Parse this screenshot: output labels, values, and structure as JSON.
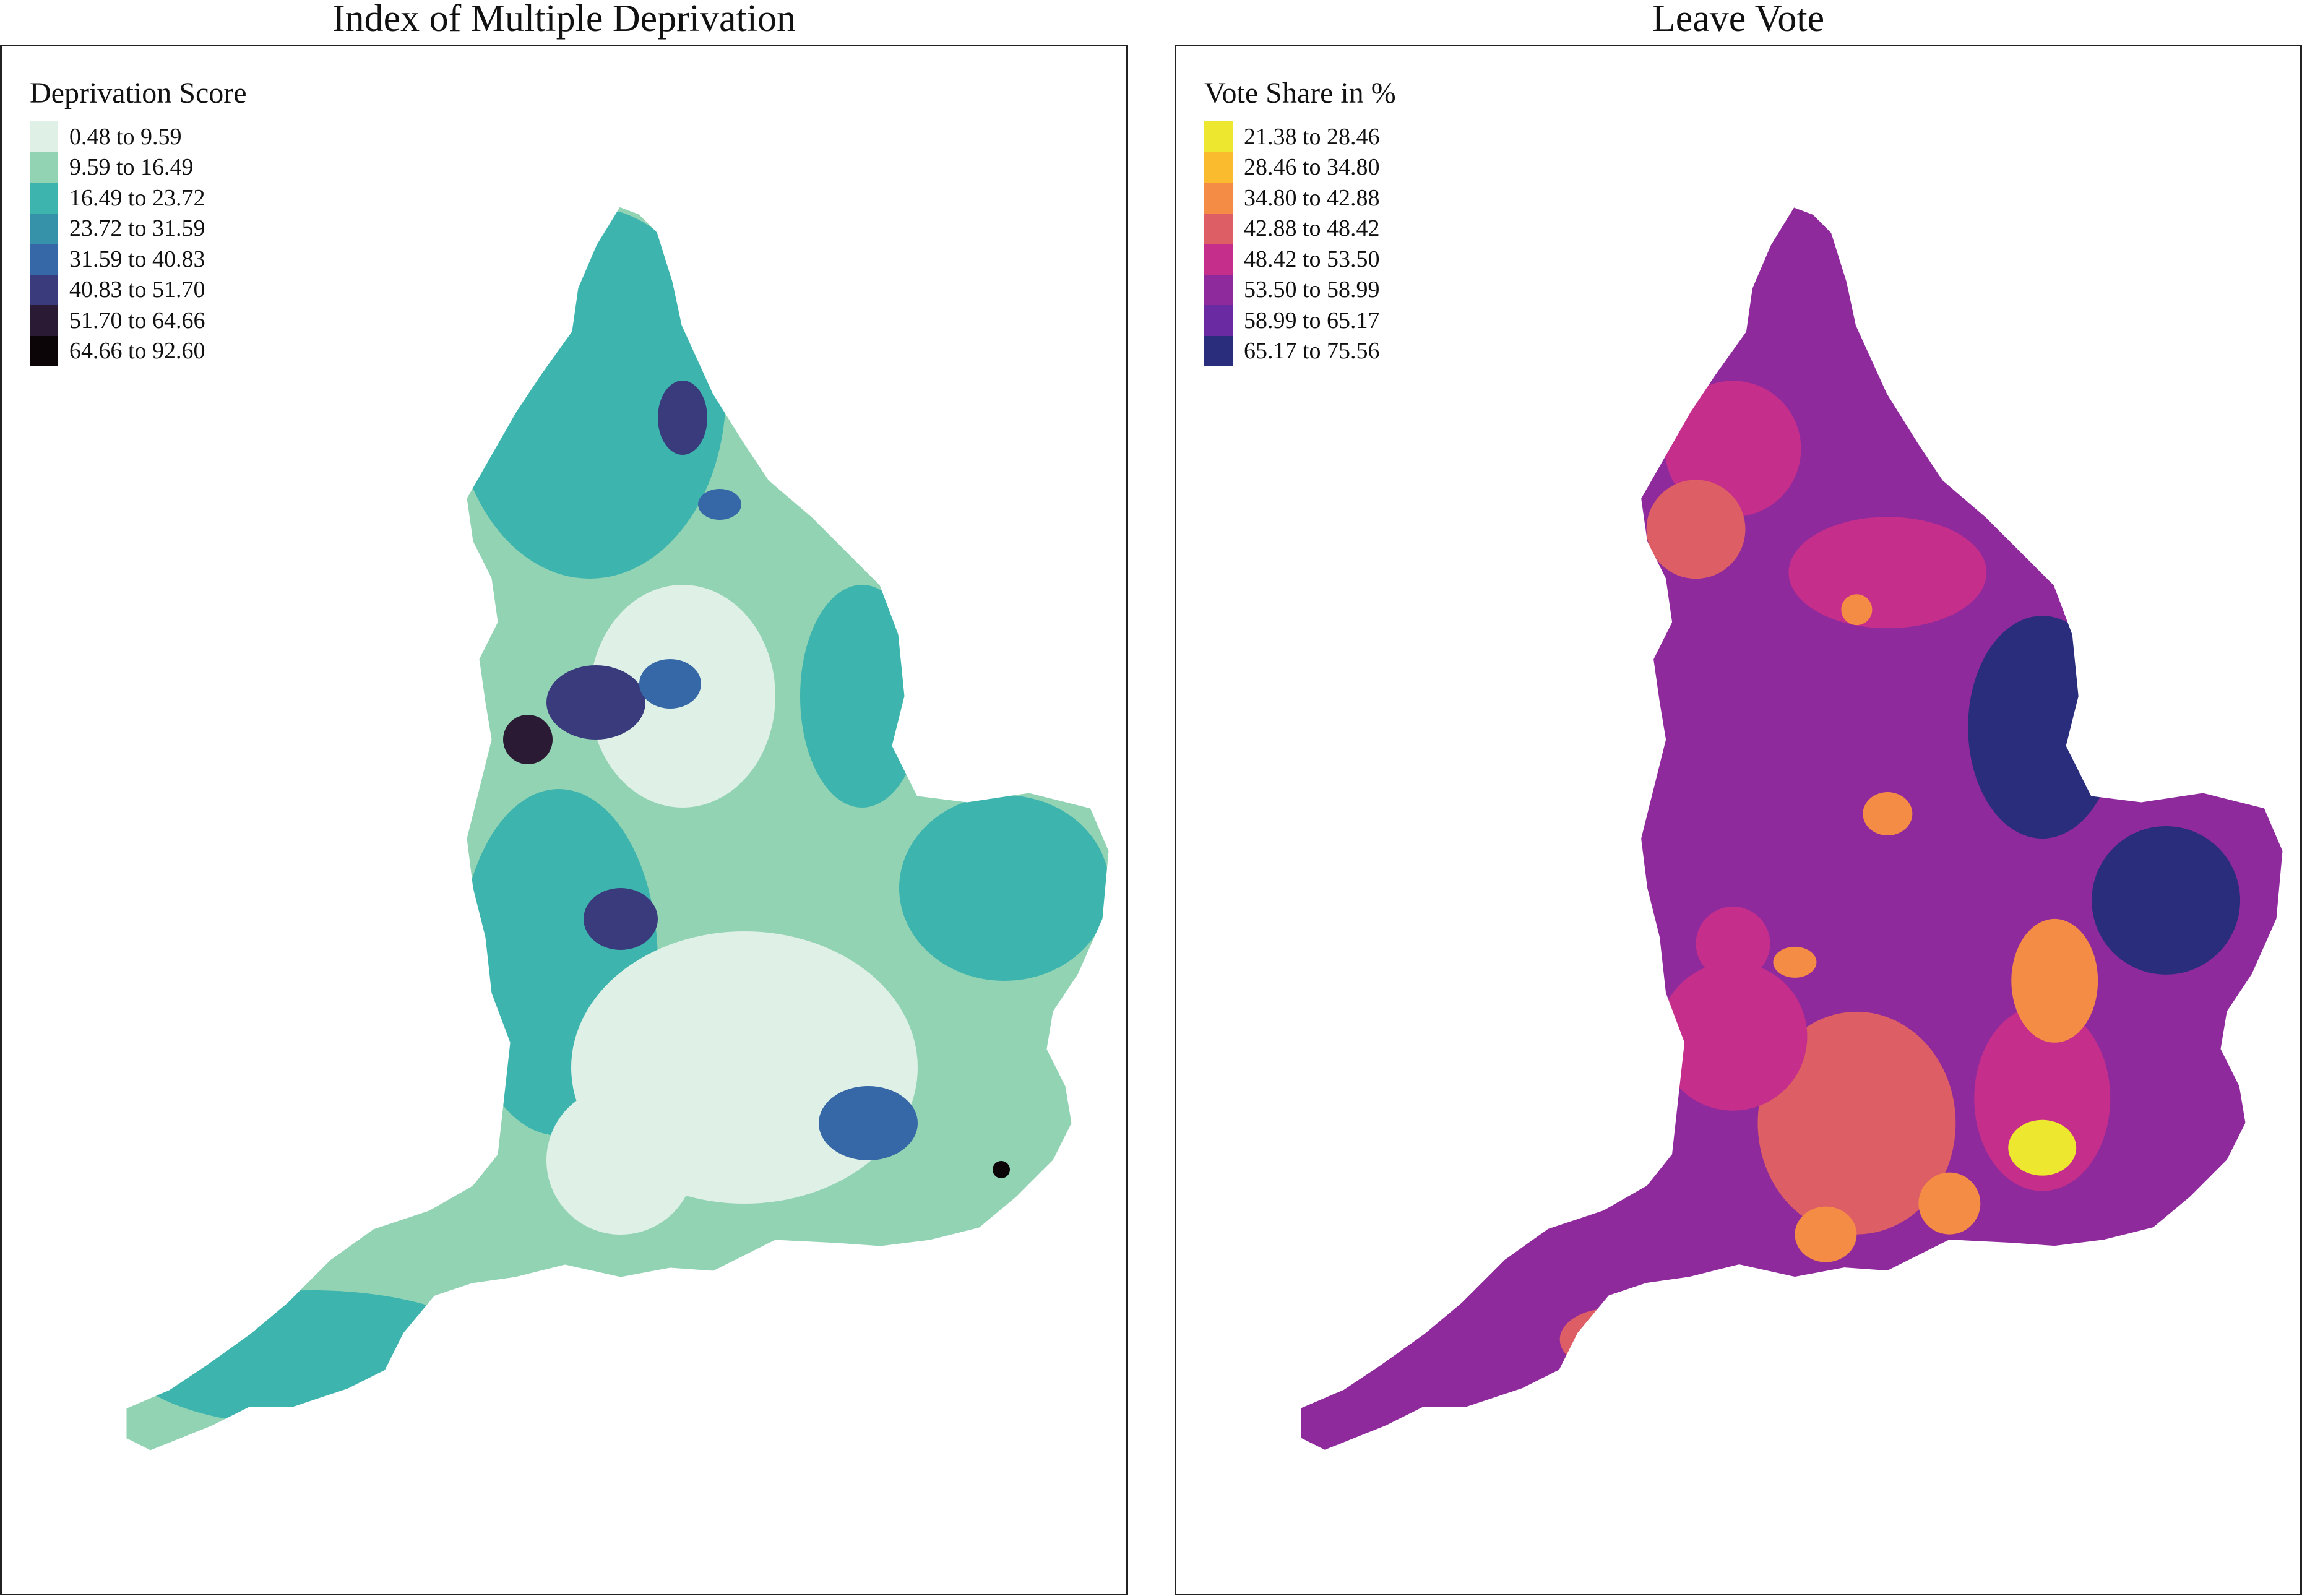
{
  "left_map": {
    "title": "Index of Multiple Deprivation",
    "legend_title": "Deprivation Score",
    "legend": [
      {
        "label": "0.48 to 9.59",
        "color": "#dff0e6"
      },
      {
        "label": "9.59 to 16.49",
        "color": "#92d3b4"
      },
      {
        "label": "16.49 to 23.72",
        "color": "#3db4ad"
      },
      {
        "label": "23.72 to 31.59",
        "color": "#3592a8"
      },
      {
        "label": "31.59 to 40.83",
        "color": "#3667a6"
      },
      {
        "label": "40.83 to 51.70",
        "color": "#393b7c"
      },
      {
        "label": "51.70 to 64.66",
        "color": "#2a1a33"
      },
      {
        "label": "64.66 to 92.60",
        "color": "#0b0507"
      }
    ]
  },
  "right_map": {
    "title": "Leave Vote",
    "legend_title": "Vote Share in %",
    "legend": [
      {
        "label": "21.38 to 28.46",
        "color": "#eee72f"
      },
      {
        "label": "28.46 to 34.80",
        "color": "#fbbb2f"
      },
      {
        "label": "34.80 to 42.88",
        "color": "#f48c45"
      },
      {
        "label": "42.88 to 48.42",
        "color": "#dd5e65"
      },
      {
        "label": "48.42 to 53.50",
        "color": "#c52e8b"
      },
      {
        "label": "53.50 to 58.99",
        "color": "#8f2a9c"
      },
      {
        "label": "58.99 to 65.17",
        "color": "#6a2ba2"
      },
      {
        "label": "65.17 to 75.56",
        "color": "#2a2d7c"
      }
    ]
  }
}
